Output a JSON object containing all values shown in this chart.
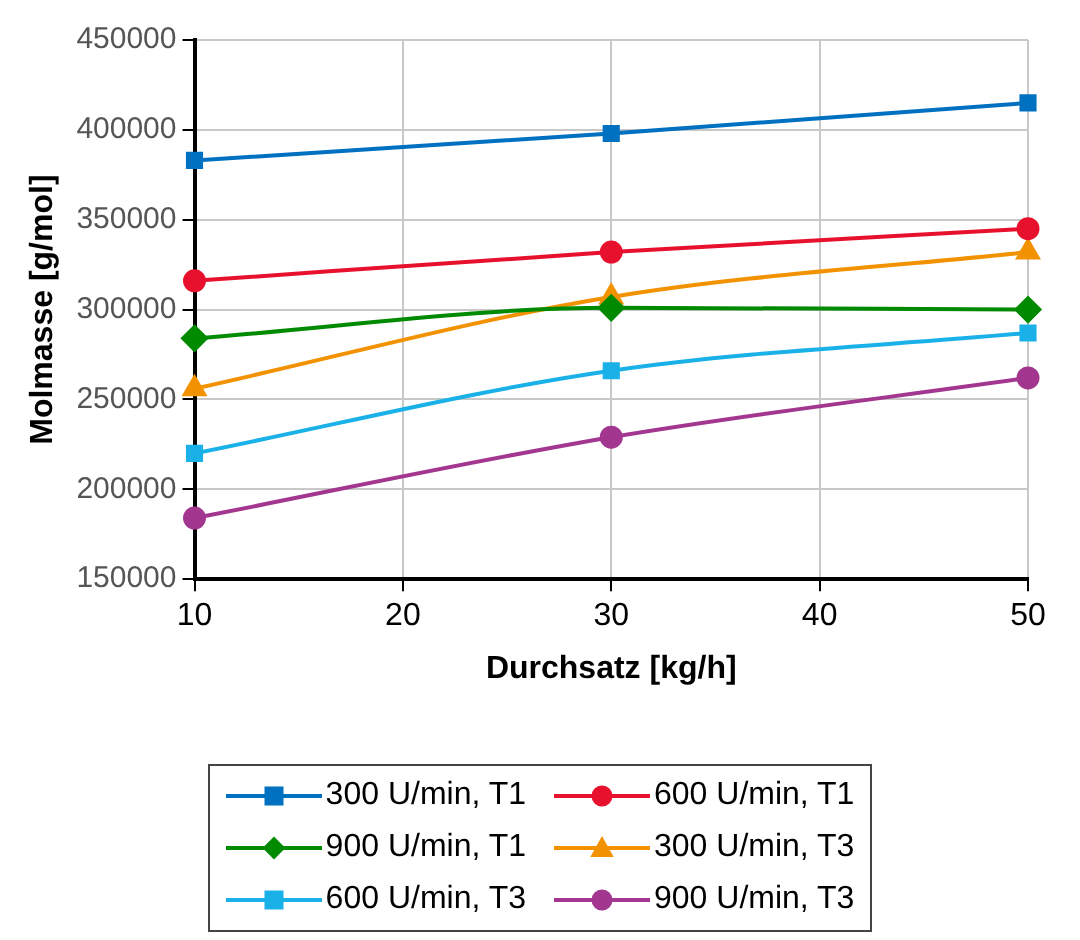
{
  "chart_data": {
    "type": "line",
    "xlabel": "Durchsatz [kg/h]",
    "ylabel": "Molmasse [g/mol]",
    "x": [
      10,
      30,
      50
    ],
    "xlim": [
      10,
      50
    ],
    "xticks": [
      10,
      20,
      30,
      40,
      50
    ],
    "ylim": [
      150000,
      450000
    ],
    "yticks": [
      150000,
      200000,
      250000,
      300000,
      350000,
      400000,
      450000
    ],
    "grid": true,
    "legend": "bottom",
    "series": [
      {
        "name": "300 U/min, T1",
        "color": "#0070c0",
        "marker": "square",
        "values": [
          383000,
          398000,
          415000
        ]
      },
      {
        "name": "600 U/min, T1",
        "color": "#e8112d",
        "marker": "circle",
        "values": [
          316000,
          332000,
          345000
        ]
      },
      {
        "name": "900 U/min, T1",
        "color": "#008a00",
        "marker": "diamond",
        "values": [
          284000,
          301000,
          300000
        ]
      },
      {
        "name": "300 U/min, T3",
        "color": "#f39200",
        "marker": "triangle",
        "values": [
          256000,
          307000,
          332000
        ]
      },
      {
        "name": "600 U/min, T3",
        "color": "#1ab0e8",
        "marker": "square",
        "values": [
          220000,
          266000,
          287000
        ]
      },
      {
        "name": "900 U/min, T3",
        "color": "#a3378f",
        "marker": "circle",
        "values": [
          184000,
          229000,
          262000
        ]
      }
    ]
  }
}
